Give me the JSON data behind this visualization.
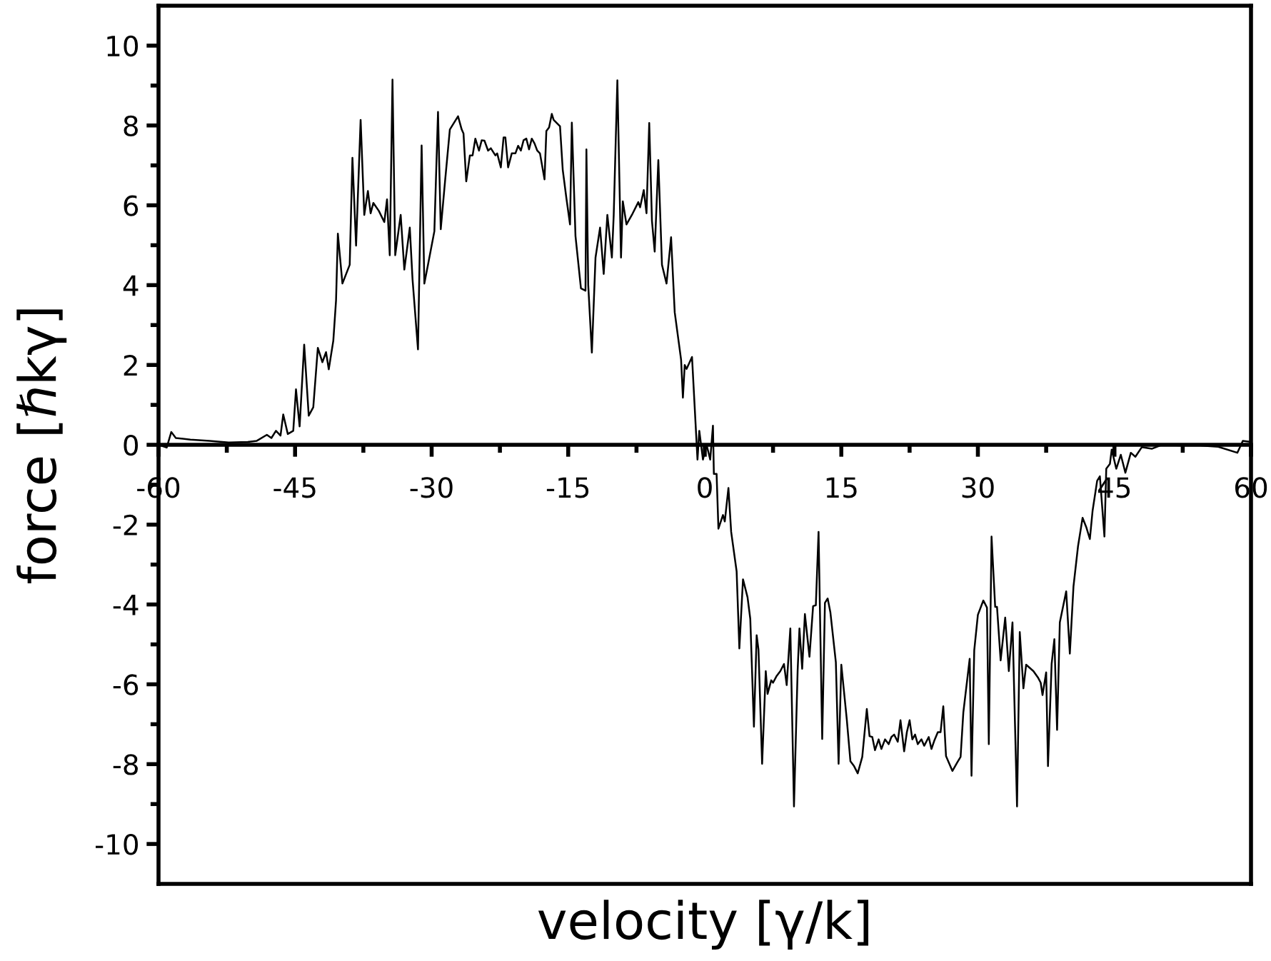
{
  "chart_data": {
    "type": "line",
    "xlabel": "velocity [γ/k]",
    "ylabel": "force [ℏkγ]",
    "xlim": [
      -60,
      60
    ],
    "ylim": [
      -11,
      11
    ],
    "xticks": [
      -60,
      {
        "value": -52.5,
        "label": null
      },
      -45,
      {
        "value": -37.5,
        "label": null
      },
      -30,
      {
        "value": -22.5,
        "label": null
      },
      -15,
      {
        "value": -7.5,
        "label": null
      },
      0,
      {
        "value": 7.5,
        "label": null
      },
      15,
      {
        "value": 22.5,
        "label": null
      },
      30,
      {
        "value": 37.5,
        "label": null
      },
      45,
      {
        "value": 52.5,
        "label": null
      },
      60
    ],
    "yticks": [
      -10,
      {
        "value": -9,
        "label": null
      },
      -8,
      {
        "value": -7,
        "label": null
      },
      -6,
      {
        "value": -5,
        "label": null
      },
      -4,
      {
        "value": -3,
        "label": null
      },
      -2,
      {
        "value": -1,
        "label": null
      },
      0,
      {
        "value": 1,
        "label": null
      },
      2,
      {
        "value": 3,
        "label": null
      },
      4,
      {
        "value": 5,
        "label": null
      },
      6,
      {
        "value": 7,
        "label": null
      },
      8,
      {
        "value": 9,
        "label": null
      },
      10
    ],
    "grid": false,
    "legend": false,
    "marker": "none",
    "line_style": "solid",
    "series": [
      {
        "color": "#000000",
        "x": [
          -60,
          -59.1,
          -58.6,
          -58.1,
          -56.5,
          -54.4,
          -52.3,
          -50.2,
          -49.2,
          -48.1,
          -47.6,
          -47.1,
          -46.6,
          -46.3,
          -45.8,
          -45.2,
          -44.9,
          -44.5,
          -44.0,
          -43.5,
          -43.0,
          -42.5,
          -42.0,
          -41.6,
          -41.3,
          -40.8,
          -40.5,
          -40.3,
          -39.8,
          -39.0,
          -38.7,
          -38.3,
          -37.8,
          -37.4,
          -37.0,
          -36.7,
          -36.4,
          -35.8,
          -35.2,
          -34.9,
          -34.6,
          -34.3,
          -34.0,
          -33.4,
          -33.0,
          -32.4,
          -32.1,
          -31.5,
          -31.1,
          -30.8,
          -30.4,
          -29.7,
          -29.3,
          -29.0,
          -28.6,
          -28.0,
          -27.1,
          -26.7,
          -26.5,
          -26.2,
          -25.8,
          -25.5,
          -25.2,
          -24.8,
          -24.5,
          -24.2,
          -23.8,
          -23.5,
          -23.0,
          -22.8,
          -22.4,
          -22.1,
          -21.9,
          -21.6,
          -21.2,
          -20.8,
          -20.5,
          -20.2,
          -19.9,
          -19.6,
          -19.3,
          -19.0,
          -18.7,
          -18.4,
          -18.1,
          -17.6,
          -17.4,
          -17.1,
          -16.8,
          -16.6,
          -15.9,
          -15.6,
          -15.2,
          -14.8,
          -14.6,
          -14.2,
          -13.6,
          -13.1,
          -13.0,
          -12.8,
          -12.4,
          -12.0,
          -11.5,
          -11.1,
          -10.7,
          -10.2,
          -10.0,
          -9.6,
          -9.2,
          -9.0,
          -8.6,
          -8.0,
          -7.3,
          -7.1,
          -6.7,
          -6.4,
          -6.1,
          -5.8,
          -5.5,
          -5.1,
          -4.7,
          -4.2,
          -3.7,
          -3.3,
          -2.6,
          -2.4,
          -2.2,
          -2.0,
          -1.4,
          -0.8,
          -0.6,
          -0.2,
          0.2,
          0.6,
          0.9,
          1.0,
          1.3,
          1.5,
          2.0,
          2.2,
          2.6,
          2.9,
          3.5,
          3.8,
          4.2,
          4.7,
          5.0,
          5.4,
          5.7,
          5.9,
          6.3,
          6.7,
          6.9,
          7.3,
          7.5,
          7.9,
          8.3,
          8.7,
          9.0,
          9.4,
          9.8,
          10.2,
          10.4,
          10.7,
          11.0,
          11.5,
          11.9,
          12.2,
          12.5,
          12.9,
          13.2,
          13.5,
          13.8,
          14.4,
          14.7,
          15.0,
          15.6,
          16.0,
          16.4,
          16.8,
          17.3,
          17.8,
          18.1,
          18.4,
          18.7,
          19.1,
          19.4,
          19.8,
          20.2,
          20.5,
          20.8,
          21.2,
          21.5,
          21.9,
          22.2,
          22.5,
          22.8,
          23.1,
          23.4,
          23.8,
          24.1,
          24.6,
          24.9,
          25.2,
          25.6,
          25.9,
          26.2,
          26.5,
          27.2,
          27.7,
          28.1,
          28.4,
          29.1,
          29.3,
          29.6,
          30.0,
          30.6,
          31.0,
          31.2,
          31.5,
          31.9,
          32.1,
          32.5,
          33.0,
          33.4,
          33.8,
          34.3,
          34.6,
          35.0,
          35.3,
          36.1,
          36.6,
          36.9,
          37.1,
          37.5,
          37.7,
          38.1,
          38.4,
          38.7,
          39.0,
          39.7,
          40.1,
          40.5,
          41.0,
          41.5,
          41.9,
          42.3,
          42.6,
          43.1,
          43.4,
          43.9,
          44.1,
          44.5,
          44.7,
          45.2,
          45.7,
          46.2,
          46.8,
          47.3,
          48.0,
          49.1,
          50.2,
          52.3,
          54.4,
          56.4,
          58.5,
          59.1,
          59.8
        ],
        "values": [
          0.0,
          -0.07,
          0.32,
          0.17,
          0.13,
          0.1,
          0.06,
          0.07,
          0.1,
          0.25,
          0.17,
          0.35,
          0.23,
          0.76,
          0.27,
          0.35,
          1.39,
          0.46,
          2.51,
          0.73,
          0.94,
          2.43,
          2.07,
          2.32,
          1.89,
          2.61,
          3.62,
          5.29,
          4.04,
          4.51,
          7.19,
          4.99,
          8.14,
          5.76,
          6.36,
          5.8,
          6.06,
          5.86,
          5.58,
          6.15,
          4.75,
          9.15,
          4.75,
          5.76,
          4.39,
          5.44,
          4.15,
          2.39,
          7.5,
          4.04,
          4.51,
          5.35,
          8.34,
          5.4,
          6.42,
          7.9,
          8.23,
          7.9,
          7.8,
          6.6,
          7.25,
          7.25,
          7.67,
          7.37,
          7.63,
          7.62,
          7.37,
          7.43,
          7.25,
          7.3,
          6.95,
          7.7,
          7.7,
          6.95,
          7.3,
          7.3,
          7.49,
          7.37,
          7.63,
          7.67,
          7.4,
          7.67,
          7.55,
          7.37,
          7.3,
          6.65,
          7.86,
          7.95,
          8.29,
          8.14,
          7.98,
          6.89,
          6.18,
          5.52,
          8.07,
          5.23,
          3.92,
          3.86,
          7.4,
          4.0,
          2.31,
          4.69,
          5.44,
          4.28,
          5.76,
          4.69,
          5.76,
          9.13,
          4.69,
          6.1,
          5.52,
          5.76,
          6.08,
          5.95,
          6.38,
          5.8,
          8.06,
          5.61,
          4.84,
          7.13,
          4.51,
          4.04,
          5.2,
          3.32,
          2.13,
          1.18,
          2.0,
          1.9,
          2.2,
          -0.37,
          0.35,
          -0.37,
          0.0,
          -0.37,
          0.48,
          -0.73,
          -0.73,
          -2.1,
          -1.76,
          -1.92,
          -1.08,
          -2.18,
          -3.17,
          -5.1,
          -3.37,
          -3.82,
          -4.36,
          -7.06,
          -4.77,
          -5.13,
          -7.99,
          -5.67,
          -6.24,
          -5.9,
          -5.96,
          -5.79,
          -5.67,
          -5.49,
          -6.02,
          -4.6,
          -9.06,
          -5.67,
          -4.6,
          -5.61,
          -4.24,
          -5.31,
          -4.04,
          -4.02,
          -2.18,
          -7.37,
          -3.96,
          -3.85,
          -4.2,
          -5.45,
          -7.99,
          -5.51,
          -6.88,
          -7.93,
          -8.05,
          -8.23,
          -7.82,
          -6.62,
          -7.3,
          -7.32,
          -7.65,
          -7.38,
          -7.62,
          -7.38,
          -7.5,
          -7.32,
          -7.26,
          -7.44,
          -6.9,
          -7.68,
          -7.2,
          -6.9,
          -7.38,
          -7.26,
          -7.5,
          -7.38,
          -7.54,
          -7.32,
          -7.62,
          -7.42,
          -7.2,
          -7.2,
          -6.55,
          -7.8,
          -8.17,
          -7.97,
          -7.82,
          -6.71,
          -5.36,
          -8.29,
          -5.15,
          -4.26,
          -3.9,
          -4.08,
          -7.5,
          -2.3,
          -4.06,
          -4.06,
          -5.4,
          -4.33,
          -5.67,
          -4.45,
          -9.06,
          -4.69,
          -6.1,
          -5.51,
          -5.67,
          -5.83,
          -5.96,
          -6.27,
          -5.7,
          -8.05,
          -5.49,
          -4.87,
          -7.14,
          -4.45,
          -3.67,
          -5.23,
          -3.55,
          -2.54,
          -1.83,
          -2.06,
          -2.36,
          -1.65,
          -0.9,
          -0.79,
          -2.3,
          -0.6,
          -0.48,
          -0.12,
          -0.6,
          -0.25,
          -0.7,
          -0.2,
          -0.3,
          -0.06,
          -0.1,
          0.0,
          -0.02,
          -0.02,
          -0.05,
          -0.2,
          0.1,
          0.08
        ]
      }
    ]
  }
}
